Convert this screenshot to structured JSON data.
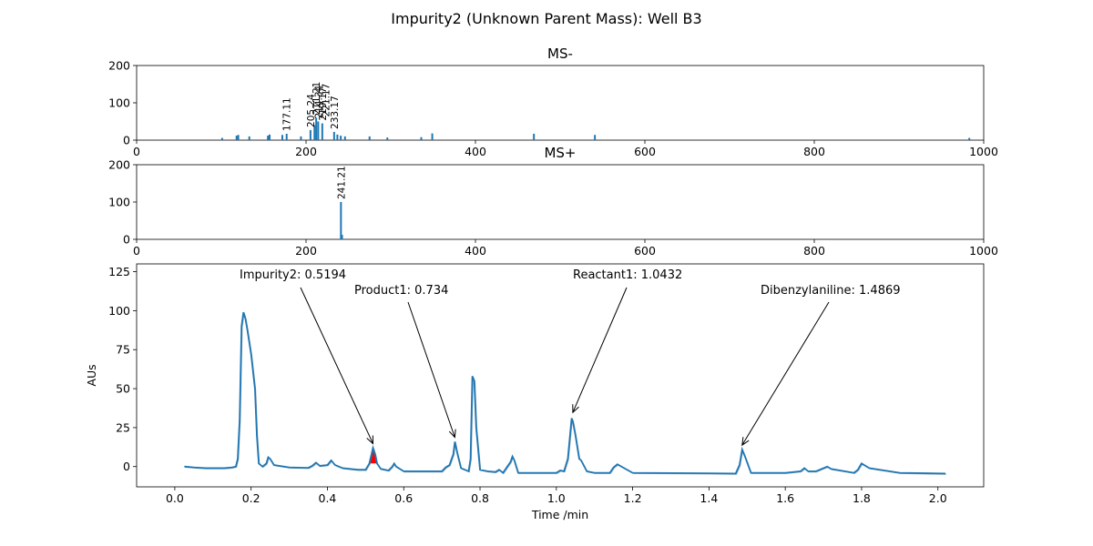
{
  "figure_title": "Impurity2 (Unknown Parent Mass): Well B3",
  "chart_data": [
    {
      "type": "bar",
      "title": "MS-",
      "xlabel": "",
      "ylabel": "",
      "xlim": [
        0,
        1000
      ],
      "ylim": [
        0,
        200
      ],
      "xticks": [
        0,
        200,
        400,
        600,
        800,
        1000
      ],
      "yticks": [
        0,
        100,
        200
      ],
      "bars": [
        {
          "x": 101,
          "y": 6
        },
        {
          "x": 118,
          "y": 12
        },
        {
          "x": 120,
          "y": 14
        },
        {
          "x": 133,
          "y": 10
        },
        {
          "x": 155,
          "y": 12
        },
        {
          "x": 157,
          "y": 15
        },
        {
          "x": 172,
          "y": 14
        },
        {
          "x": 177.11,
          "y": 17
        },
        {
          "x": 194,
          "y": 10
        },
        {
          "x": 205.24,
          "y": 27
        },
        {
          "x": 210,
          "y": 40
        },
        {
          "x": 212,
          "y": 60
        },
        {
          "x": 214.34,
          "y": 50
        },
        {
          "x": 219.17,
          "y": 45
        },
        {
          "x": 233.17,
          "y": 22
        },
        {
          "x": 237,
          "y": 15
        },
        {
          "x": 241,
          "y": 12
        },
        {
          "x": 246,
          "y": 10
        },
        {
          "x": 275,
          "y": 10
        },
        {
          "x": 296,
          "y": 7
        },
        {
          "x": 336,
          "y": 8
        },
        {
          "x": 349,
          "y": 18
        },
        {
          "x": 469,
          "y": 17
        },
        {
          "x": 541,
          "y": 14
        },
        {
          "x": 983,
          "y": 6
        }
      ],
      "labels": [
        {
          "x": 177.11,
          "y": 17,
          "text": "177.11"
        },
        {
          "x": 205.24,
          "y": 27,
          "text": "205.24"
        },
        {
          "x": 212,
          "y": 60,
          "text": "211.21"
        },
        {
          "x": 214.34,
          "y": 50,
          "text": "214.34"
        },
        {
          "x": 219.17,
          "y": 45,
          "text": "219.17"
        },
        {
          "x": 223,
          "y": 55,
          "text": "221.17"
        },
        {
          "x": 233.17,
          "y": 22,
          "text": "233.17"
        }
      ]
    },
    {
      "type": "bar",
      "title": "MS+",
      "xlabel": "",
      "ylabel": "",
      "xlim": [
        0,
        1000
      ],
      "ylim": [
        0,
        200
      ],
      "xticks": [
        0,
        200,
        400,
        600,
        800,
        1000
      ],
      "yticks": [
        0,
        100,
        200
      ],
      "bars": [
        {
          "x": 241.21,
          "y": 100
        },
        {
          "x": 242.5,
          "y": 12
        }
      ],
      "labels": [
        {
          "x": 241.21,
          "y": 100,
          "text": "241.21"
        }
      ]
    },
    {
      "type": "line",
      "title": "",
      "xlabel": "Time /min",
      "ylabel": "AUs",
      "xlim": [
        -0.1,
        2.12
      ],
      "ylim": [
        -13,
        130
      ],
      "xticks": [
        "0.0",
        "0.2",
        "0.4",
        "0.6",
        "0.8",
        "1.0",
        "1.2",
        "1.4",
        "1.6",
        "1.8",
        "2.0"
      ],
      "yticks": [
        0,
        25,
        50,
        75,
        100,
        125
      ],
      "highlight": {
        "x_start": 0.505,
        "x_end": 0.535,
        "color": "#ff0000"
      },
      "series": [
        {
          "x": [
            0.025,
            0.05,
            0.08,
            0.1,
            0.13,
            0.15,
            0.16,
            0.165,
            0.17,
            0.175,
            0.18,
            0.185,
            0.19,
            0.2,
            0.21,
            0.215,
            0.22,
            0.23,
            0.24,
            0.245,
            0.25,
            0.26,
            0.3,
            0.35,
            0.36,
            0.37,
            0.38,
            0.4,
            0.41,
            0.42,
            0.44,
            0.48,
            0.5,
            0.51,
            0.5194,
            0.525,
            0.53,
            0.54,
            0.56,
            0.57,
            0.575,
            0.58,
            0.6,
            0.7,
            0.71,
            0.72,
            0.73,
            0.734,
            0.74,
            0.75,
            0.77,
            0.775,
            0.78,
            0.785,
            0.79,
            0.8,
            0.82,
            0.84,
            0.85,
            0.86,
            0.88,
            0.885,
            0.89,
            0.9,
            1.0,
            1.01,
            1.02,
            1.03,
            1.04,
            1.0432,
            1.05,
            1.06,
            1.065,
            1.08,
            1.1,
            1.14,
            1.15,
            1.16,
            1.2,
            1.4,
            1.47,
            1.48,
            1.4869,
            1.495,
            1.51,
            1.6,
            1.64,
            1.65,
            1.66,
            1.68,
            1.7,
            1.71,
            1.72,
            1.78,
            1.79,
            1.8,
            1.82,
            1.9,
            2.02
          ],
          "y": [
            0,
            -0.5,
            -1,
            -1,
            -1,
            -0.5,
            0,
            5,
            30,
            90,
            99,
            95,
            88,
            72,
            50,
            20,
            2,
            0,
            2,
            6,
            5,
            1,
            -0.5,
            -0.8,
            0.5,
            2.5,
            0.5,
            1,
            4,
            1,
            -1,
            -2,
            -2,
            2,
            12,
            8,
            2,
            -1.5,
            -2.5,
            0,
            2,
            0,
            -3,
            -3,
            -0.5,
            1,
            8,
            16,
            9,
            -1,
            -3,
            5,
            58,
            55,
            25,
            -2,
            -3,
            -3.5,
            -2,
            -4,
            3,
            6.5,
            4,
            -4,
            -4,
            -2.5,
            -3,
            5,
            31,
            29,
            20,
            5,
            4,
            -3,
            -4,
            -4,
            -0.5,
            1.5,
            -4,
            -4.3,
            -4.5,
            1,
            11,
            6,
            -4,
            -4,
            -3,
            -1,
            -3,
            -3,
            -1,
            0,
            -1.5,
            -4,
            -2,
            2,
            -1,
            -4,
            -4.5
          ]
        }
      ],
      "annotations": [
        {
          "text": "Impurity2: 0.5194",
          "x": 0.5194,
          "y": 13
        },
        {
          "text": "Product1: 0.734",
          "x": 0.734,
          "y": 17
        },
        {
          "text": "Reactant1: 1.0432",
          "x": 1.0432,
          "y": 33
        },
        {
          "text": "Dibenzylaniline: 1.4869",
          "x": 1.4869,
          "y": 12
        }
      ]
    }
  ]
}
